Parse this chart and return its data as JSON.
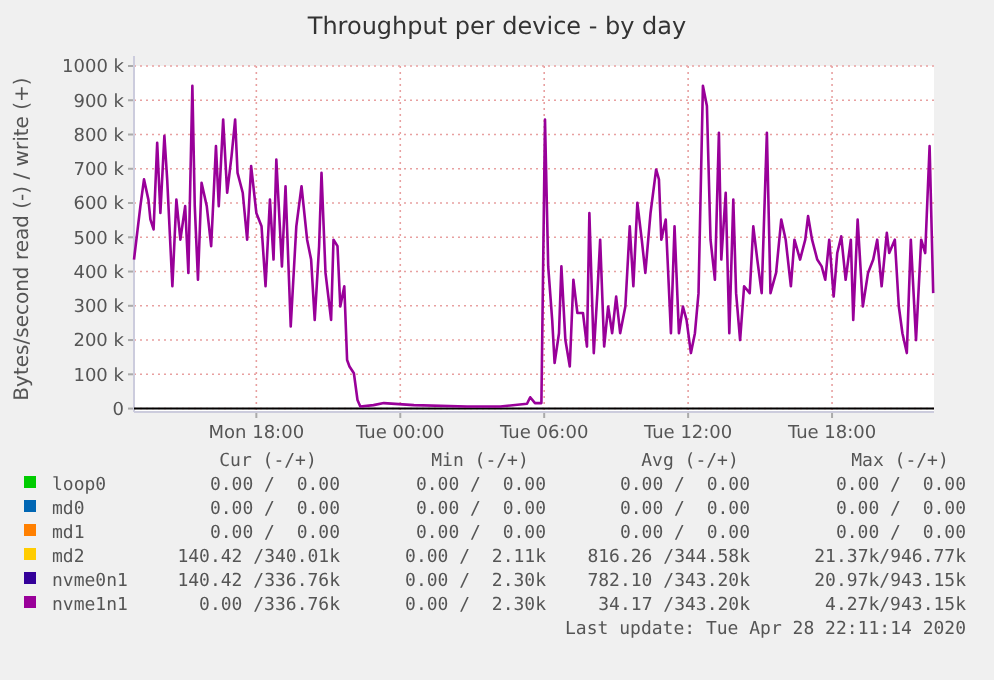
{
  "chart_data": {
    "type": "line",
    "title": "Throughput per device - by day",
    "ylabel": "Bytes/second read (-) / write (+)",
    "xlim": [
      "2020-04-27T12:54",
      "2020-04-28T22:15"
    ],
    "xticks": [
      {
        "value": "2020-04-27T18:00",
        "label": "Mon 18:00"
      },
      {
        "value": "2020-04-28T00:00",
        "label": "Tue 00:00"
      },
      {
        "value": "2020-04-28T06:00",
        "label": "Tue 06:00"
      },
      {
        "value": "2020-04-28T12:00",
        "label": "Tue 12:00"
      },
      {
        "value": "2020-04-28T18:00",
        "label": "Tue 18:00"
      }
    ],
    "ylim": [
      -10,
      1000
    ],
    "yticks": [
      0,
      {
        "value": 100,
        "label": "100 k"
      },
      {
        "value": 200,
        "label": "200 k"
      },
      {
        "value": 300,
        "label": "300 k"
      },
      {
        "value": 400,
        "label": "400 k"
      },
      {
        "value": 500,
        "label": "500 k"
      },
      {
        "value": 600,
        "label": "600 k"
      },
      {
        "value": 700,
        "label": "700 k"
      },
      {
        "value": 800,
        "label": "800 k"
      },
      {
        "value": 900,
        "label": "900 k"
      },
      {
        "value": 1000,
        "label": "1000 k"
      }
    ],
    "grid": true,
    "legend": "bottom",
    "marker": "none",
    "line_style": "solid",
    "annotations": [
      "Cur (-/+)",
      "Min (-/+)",
      "Avg (-/+)",
      "Max (-/+)",
      "0.00 /  0.00",
      "0.00 /  0.00",
      "0.00 /  0.00",
      "0.00 /  0.00",
      "0.00 /  0.00",
      "0.00 /  0.00",
      "0.00 /  0.00",
      "0.00 /  0.00",
      "0.00 /  0.00",
      "0.00 /  0.00",
      "0.00 /  0.00",
      "0.00 /  0.00",
      "140.42 /340.01k",
      "0.00 /  2.11k",
      "816.26 /344.58k",
      "21.37k/946.77k",
      "140.42 /336.76k",
      "0.00 /  2.30k",
      "782.10 /343.20k",
      "20.97k/943.15k",
      "0.00 /336.76k",
      "0.00 /  2.30k",
      "34.17 /343.20k",
      "4.27k/943.15k",
      "Last update: Tue Apr 28 22:11:14 2020"
    ],
    "series": [
      {
        "name": "loop0",
        "color": "#00cc00"
      },
      {
        "name": "md0",
        "color": "#0066b3"
      },
      {
        "name": "md1",
        "color": "#ff8000"
      },
      {
        "name": "md2",
        "color": "#ffcc00"
      },
      {
        "name": "nvme0n1",
        "color": "#330099"
      },
      {
        "name": "nvme1n1",
        "color": "#990099",
        "x": [
          "2020-04-27T12:54",
          "2020-04-27T13:10",
          "2020-04-27T13:19",
          "2020-04-27T13:30",
          "2020-04-27T13:35",
          "2020-04-27T13:43",
          "2020-04-27T13:52",
          "2020-04-27T14:00",
          "2020-04-27T14:10",
          "2020-04-27T14:17",
          "2020-04-27T14:30",
          "2020-04-27T14:40",
          "2020-04-27T14:50",
          "2020-04-27T15:02",
          "2020-04-27T15:10",
          "2020-04-27T15:20",
          "2020-04-27T15:26",
          "2020-04-27T15:34",
          "2020-04-27T15:43",
          "2020-04-27T15:56",
          "2020-04-27T16:07",
          "2020-04-27T16:19",
          "2020-04-27T16:26",
          "2020-04-27T16:37",
          "2020-04-27T16:47",
          "2020-04-27T16:58",
          "2020-04-27T17:07",
          "2020-04-27T17:13",
          "2020-04-27T17:26",
          "2020-04-27T17:37",
          "2020-04-27T17:47",
          "2020-04-27T18:00",
          "2020-04-27T18:13",
          "2020-04-27T18:23",
          "2020-04-27T18:34",
          "2020-04-27T18:43",
          "2020-04-27T18:50",
          "2020-04-27T19:04",
          "2020-04-27T19:13",
          "2020-04-27T19:26",
          "2020-04-27T19:40",
          "2020-04-27T19:53",
          "2020-04-27T20:07",
          "2020-04-27T20:17",
          "2020-04-27T20:26",
          "2020-04-27T20:37",
          "2020-04-27T20:43",
          "2020-04-27T20:53",
          "2020-04-27T21:07",
          "2020-04-27T21:13",
          "2020-04-27T21:23",
          "2020-04-27T21:30",
          "2020-04-27T21:40",
          "2020-04-27T21:47",
          "2020-04-27T21:53",
          "2020-04-27T22:04",
          "2020-04-27T22:13",
          "2020-04-27T22:20",
          "2020-04-27T22:53",
          "2020-04-27T23:19",
          "2020-04-28T00:34",
          "2020-04-28T02:47",
          "2020-04-28T04:10",
          "2020-04-28T05:17",
          "2020-04-28T05:25",
          "2020-04-28T05:37",
          "2020-04-28T05:53",
          "2020-04-28T06:02",
          "2020-04-28T06:10",
          "2020-04-28T06:20",
          "2020-04-28T06:26",
          "2020-04-28T06:37",
          "2020-04-28T06:43",
          "2020-04-28T06:53",
          "2020-04-28T07:04",
          "2020-04-28T07:13",
          "2020-04-28T07:23",
          "2020-04-28T07:37",
          "2020-04-28T07:47",
          "2020-04-28T07:53",
          "2020-04-28T08:04",
          "2020-04-28T08:13",
          "2020-04-28T08:20",
          "2020-04-28T08:30",
          "2020-04-28T08:40",
          "2020-04-28T08:50",
          "2020-04-28T09:00",
          "2020-04-28T09:10",
          "2020-04-28T09:23",
          "2020-04-28T09:34",
          "2020-04-28T09:43",
          "2020-04-28T09:53",
          "2020-04-28T10:04",
          "2020-04-28T10:13",
          "2020-04-28T10:26",
          "2020-04-28T10:40",
          "2020-04-28T10:47",
          "2020-04-28T10:53",
          "2020-04-28T11:04",
          "2020-04-28T11:17",
          "2020-04-28T11:26",
          "2020-04-28T11:37",
          "2020-04-28T11:47",
          "2020-04-28T11:56",
          "2020-04-28T12:07",
          "2020-04-28T12:17",
          "2020-04-28T12:26",
          "2020-04-28T12:37",
          "2020-04-28T12:47",
          "2020-04-28T12:56",
          "2020-04-28T13:07",
          "2020-04-28T13:17",
          "2020-04-28T13:23",
          "2020-04-28T13:34",
          "2020-04-28T13:43",
          "2020-04-28T13:53",
          "2020-04-28T14:00",
          "2020-04-28T14:10",
          "2020-04-28T14:20",
          "2020-04-28T14:34",
          "2020-04-28T14:43",
          "2020-04-28T14:53",
          "2020-04-28T15:04",
          "2020-04-28T15:17",
          "2020-04-28T15:26",
          "2020-04-28T15:40",
          "2020-04-28T15:53",
          "2020-04-28T16:04",
          "2020-04-28T16:17",
          "2020-04-28T16:26",
          "2020-04-28T16:40",
          "2020-04-28T16:53",
          "2020-04-28T17:00",
          "2020-04-28T17:10",
          "2020-04-28T17:23",
          "2020-04-28T17:34",
          "2020-04-28T17:43",
          "2020-04-28T17:53",
          "2020-04-28T18:04",
          "2020-04-28T18:13",
          "2020-04-28T18:23",
          "2020-04-28T18:34",
          "2020-04-28T18:47",
          "2020-04-28T18:53",
          "2020-04-28T19:04",
          "2020-04-28T19:17",
          "2020-04-28T19:30",
          "2020-04-28T19:43",
          "2020-04-28T19:53",
          "2020-04-28T20:04",
          "2020-04-28T20:17",
          "2020-04-28T20:23",
          "2020-04-28T20:37",
          "2020-04-28T20:47",
          "2020-04-28T20:56",
          "2020-04-28T21:07",
          "2020-04-28T21:17",
          "2020-04-28T21:30",
          "2020-04-28T21:43",
          "2020-04-28T21:53",
          "2020-04-28T22:04",
          "2020-04-28T22:13"
        ],
        "values": [
          435,
          591,
          669,
          610,
          552,
          523,
          776,
          571,
          796,
          669,
          357,
          610,
          493,
          591,
          396,
          942,
          591,
          376,
          659,
          591,
          474,
          766,
          591,
          844,
          630,
          737,
          844,
          688,
          630,
          493,
          708,
          571,
          532,
          357,
          610,
          435,
          727,
          415,
          649,
          240,
          532,
          649,
          493,
          435,
          259,
          474,
          688,
          396,
          259,
          493,
          474,
          298,
          357,
          142,
          123,
          103,
          25,
          6,
          10,
          16,
          10,
          6,
          6,
          14,
          33,
          16,
          16,
          844,
          415,
          259,
          133,
          220,
          415,
          200,
          123,
          376,
          279,
          279,
          181,
          571,
          162,
          337,
          493,
          181,
          298,
          220,
          327,
          220,
          298,
          532,
          357,
          601,
          493,
          396,
          571,
          698,
          669,
          493,
          552,
          220,
          532,
          220,
          298,
          259,
          162,
          220,
          337,
          942,
          883,
          493,
          376,
          805,
          435,
          630,
          220,
          610,
          337,
          200,
          357,
          337,
          532,
          435,
          337,
          805,
          337,
          396,
          552,
          493,
          357,
          493,
          435,
          493,
          562,
          493,
          435,
          415,
          376,
          493,
          327,
          454,
          503,
          376,
          493,
          259,
          552,
          298,
          396,
          435,
          493,
          357,
          513,
          454,
          493,
          298,
          220,
          162,
          493,
          200,
          493,
          454,
          766,
          337
        ]
      }
    ]
  }
}
